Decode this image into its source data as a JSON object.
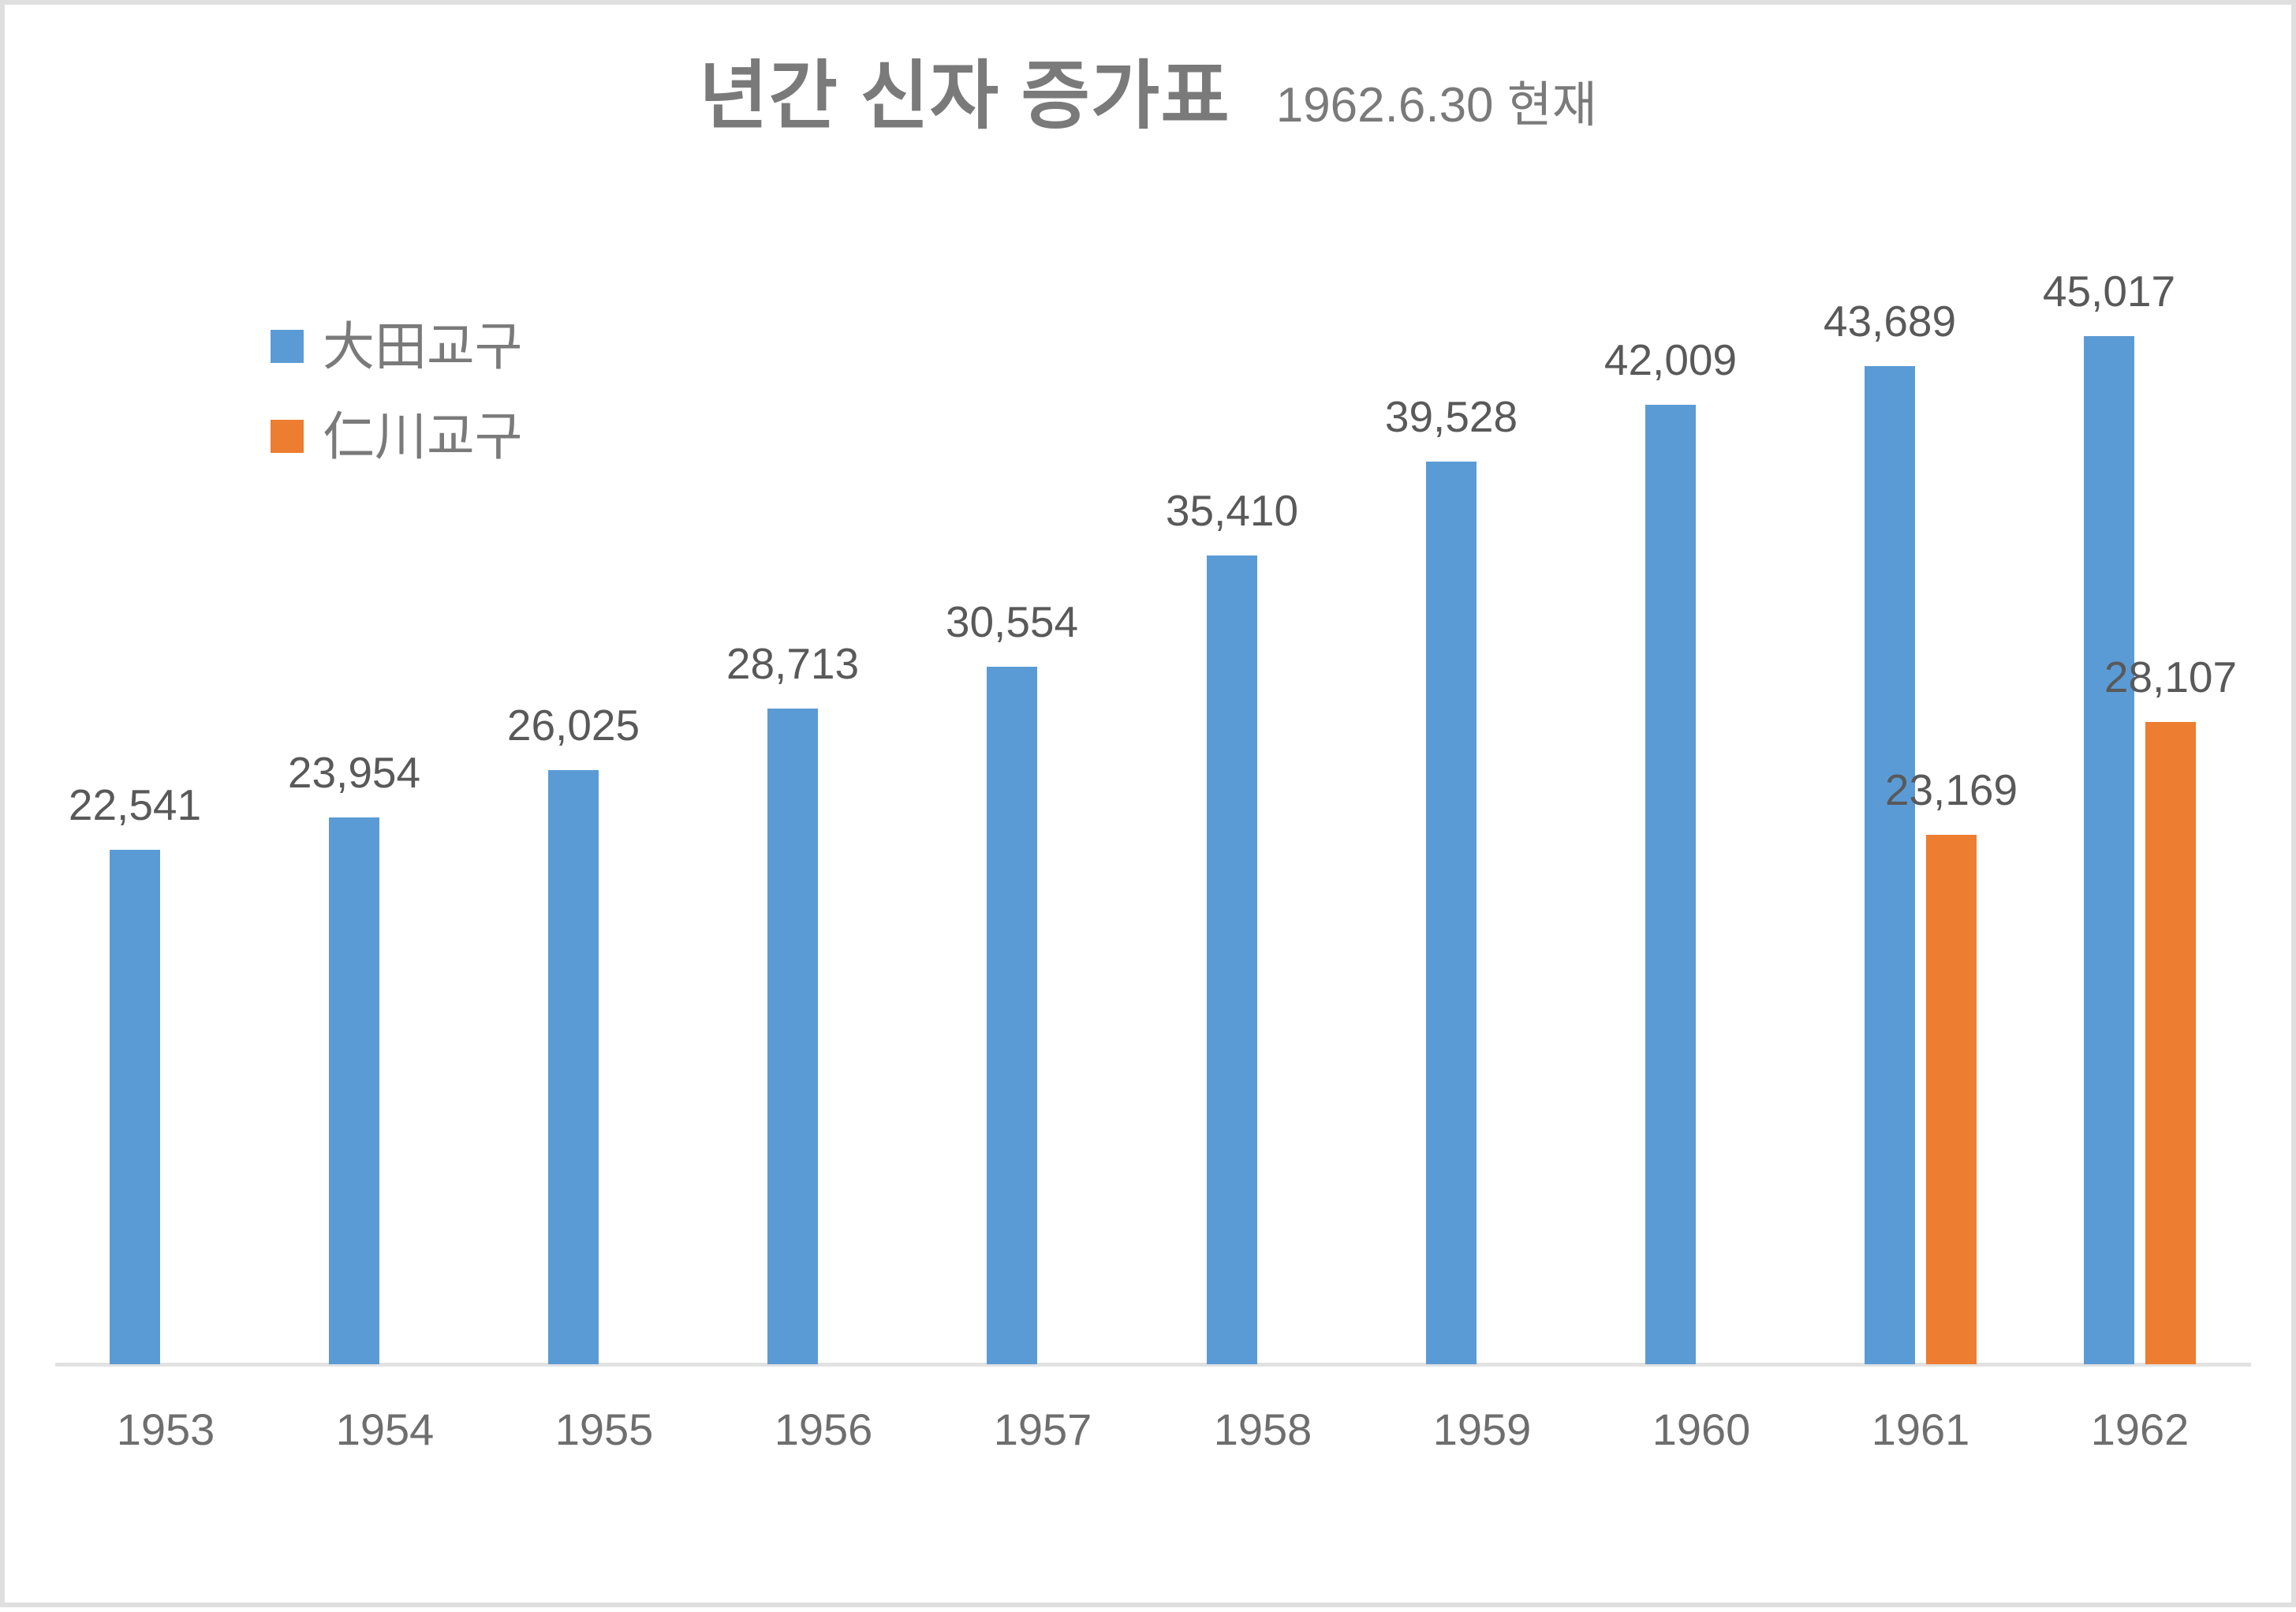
{
  "chart_data": {
    "type": "bar",
    "title": "년간 신자 증가표",
    "subtitle": "1962.6.30 현재",
    "categories": [
      "1953",
      "1954",
      "1955",
      "1956",
      "1957",
      "1958",
      "1959",
      "1960",
      "1961",
      "1962"
    ],
    "series": [
      {
        "name": "大田교구",
        "slug": "daejeon",
        "color": "#5B9BD5",
        "values": [
          22541,
          23954,
          26025,
          28713,
          30554,
          35410,
          39528,
          42009,
          43689,
          45017
        ]
      },
      {
        "name": "仁川교구",
        "slug": "incheon",
        "color": "#ED7D31",
        "values": [
          null,
          null,
          null,
          null,
          null,
          null,
          null,
          null,
          23169,
          28107
        ]
      }
    ],
    "data_labels": [
      "22,541",
      "23,954",
      "26,025",
      "28,713",
      "30,554",
      "35,410",
      "39,528",
      "42,009",
      "43,689",
      "45,017",
      "23,169",
      "28,107"
    ],
    "xlabel": "",
    "ylabel": "",
    "ylim": [
      0,
      45017
    ],
    "grid": false,
    "legend_position": "top-left"
  }
}
